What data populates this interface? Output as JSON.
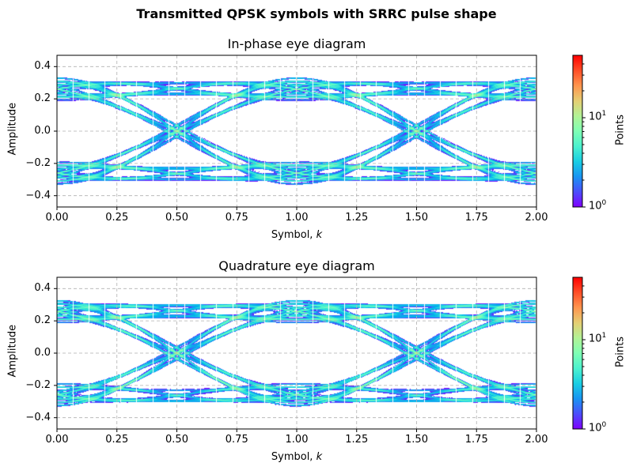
{
  "suptitle": "Transmitted QPSK symbols with SRRC pulse shape",
  "chart_data": [
    {
      "type": "heatmap",
      "title": "In-phase eye diagram",
      "xlabel": "Symbol, k",
      "ylabel": "Amplitude",
      "xlim": [
        0,
        2
      ],
      "ylim": [
        -0.47,
        0.47
      ],
      "xticks": [
        "0.00",
        "0.25",
        "0.50",
        "0.75",
        "1.00",
        "1.25",
        "1.50",
        "1.75",
        "2.00"
      ],
      "yticks": [
        "-0.4",
        "-0.2",
        "0.0",
        "0.2",
        "0.4"
      ],
      "grid": true,
      "colormap": "rainbow",
      "colorbar": {
        "label": "Points",
        "scale": "log",
        "range": [
          1,
          50
        ],
        "ticks": [
          "10^0",
          "10^1"
        ]
      },
      "symbol_levels": [
        -0.26,
        0.26
      ]
    },
    {
      "type": "heatmap",
      "title": "Quadrature eye diagram",
      "xlabel": "Symbol, k",
      "ylabel": "Amplitude",
      "xlim": [
        0,
        2
      ],
      "ylim": [
        -0.47,
        0.47
      ],
      "xticks": [
        "0.00",
        "0.25",
        "0.50",
        "0.75",
        "1.00",
        "1.25",
        "1.50",
        "1.75",
        "2.00"
      ],
      "yticks": [
        "-0.4",
        "-0.2",
        "0.0",
        "0.2",
        "0.4"
      ],
      "grid": true,
      "colormap": "rainbow",
      "colorbar": {
        "label": "Points",
        "scale": "log",
        "range": [
          1,
          50
        ],
        "ticks": [
          "10^0",
          "10^1"
        ]
      },
      "symbol_levels": [
        -0.26,
        0.26
      ]
    }
  ]
}
